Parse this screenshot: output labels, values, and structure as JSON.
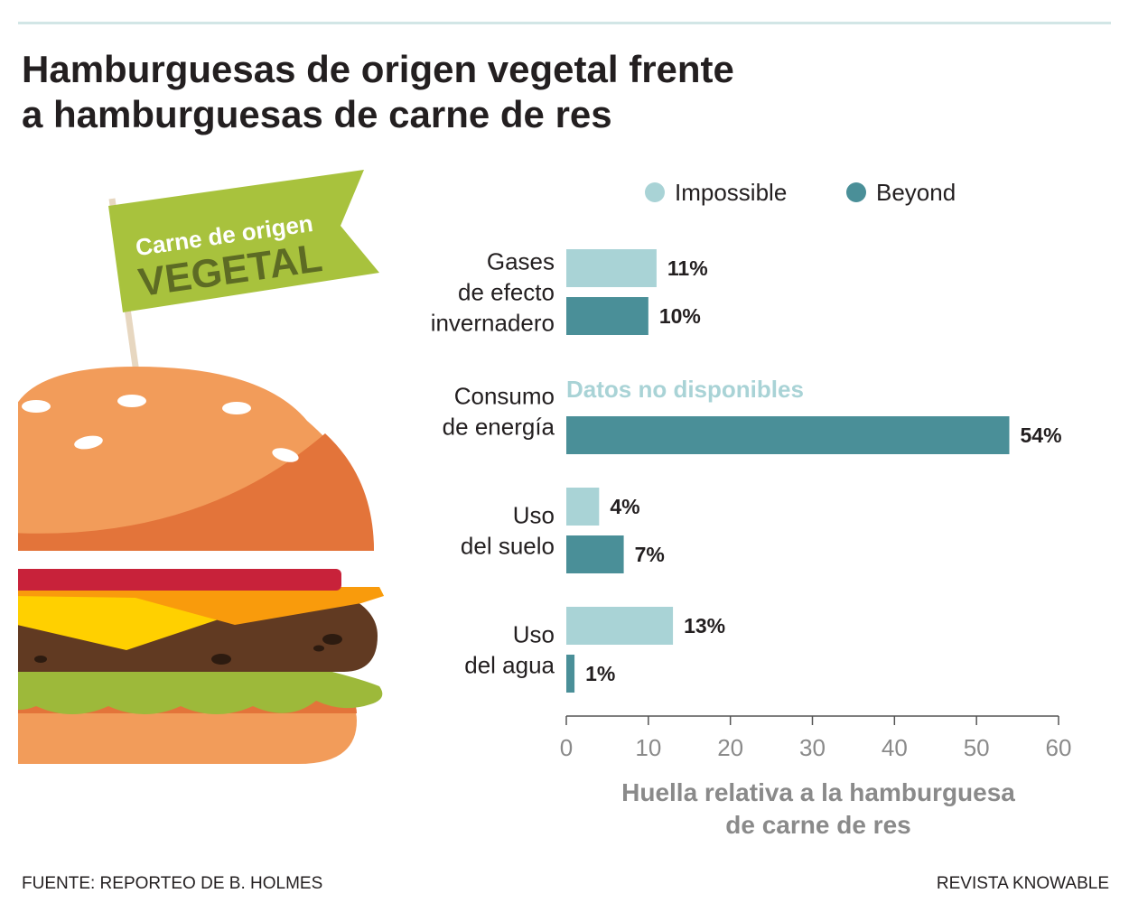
{
  "header": {
    "title_line1": "Hamburguesas de origen vegetal frente",
    "title_line2": "a hamburguesas de carne de res"
  },
  "illustration": {
    "flag_line1": "Carne de origen",
    "flag_line2": "VEGETAL"
  },
  "footer": {
    "source": "FUENTE: REPORTEO DE B. HOLMES",
    "credit": "REVISTA KNOWABLE"
  },
  "colors": {
    "impossible": "#a9d3d6",
    "beyond": "#4a8f98",
    "flag": "#a8c23d"
  },
  "chart_data": {
    "type": "bar",
    "orientation": "horizontal",
    "categories": [
      [
        "Gases",
        "de efecto",
        "invernadero"
      ],
      [
        "Consumo",
        "de energía"
      ],
      [
        "Uso",
        "del suelo"
      ],
      [
        "Uso",
        "del agua"
      ]
    ],
    "series": [
      {
        "name": "Impossible",
        "values": [
          11,
          null,
          4,
          13
        ],
        "labels": [
          "11%",
          "",
          "4%",
          "13%"
        ]
      },
      {
        "name": "Beyond",
        "values": [
          10,
          54,
          7,
          1
        ],
        "labels": [
          "10%",
          "54%",
          "7%",
          "1%"
        ]
      }
    ],
    "annotations": [
      {
        "category_index": 1,
        "series": "Impossible",
        "text": "Datos no disponibles"
      }
    ],
    "xlim": [
      0,
      60
    ],
    "xticks": [
      0,
      10,
      20,
      30,
      40,
      50,
      60
    ],
    "xlabel_line1": "Huella relativa a la hamburguesa",
    "xlabel_line2": "de carne de res",
    "legend_placement": "top",
    "grid": false
  }
}
